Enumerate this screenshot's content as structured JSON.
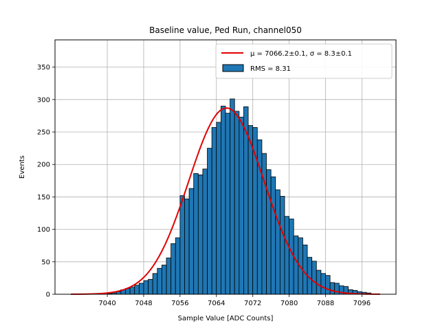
{
  "chart_data": {
    "type": "bar",
    "title": "Baseline value, Ped Run, channel050",
    "xlabel": "Sample Value [ADC Counts]",
    "ylabel": "Events",
    "xlim": [
      7028.5,
      7103.5
    ],
    "ylim": [
      0,
      392
    ],
    "xticks": [
      7040,
      7048,
      7056,
      7064,
      7072,
      7080,
      7088,
      7096
    ],
    "yticks": [
      0,
      50,
      100,
      150,
      200,
      250,
      300,
      350
    ],
    "grid": true,
    "legend_position": "top-right",
    "histogram": {
      "name": "RMS = 8.31",
      "color": "#1f77b4",
      "edge_color": "#000000",
      "bin_width": 1,
      "bin_starts": [
        7032,
        7033,
        7034,
        7035,
        7036,
        7037,
        7038,
        7039,
        7040,
        7041,
        7042,
        7043,
        7044,
        7045,
        7046,
        7047,
        7048,
        7049,
        7050,
        7051,
        7052,
        7053,
        7054,
        7055,
        7056,
        7057,
        7058,
        7059,
        7060,
        7061,
        7062,
        7063,
        7064,
        7065,
        7066,
        7067,
        7068,
        7069,
        7070,
        7071,
        7072,
        7073,
        7074,
        7075,
        7076,
        7077,
        7078,
        7079,
        7080,
        7081,
        7082,
        7083,
        7084,
        7085,
        7086,
        7087,
        7088,
        7089,
        7090,
        7091,
        7092,
        7093,
        7094,
        7095,
        7096,
        7097,
        7098,
        7099
      ],
      "counts": [
        0,
        0,
        0,
        0,
        0,
        0,
        0,
        0,
        1,
        2,
        4,
        7,
        9,
        11,
        14,
        17,
        21,
        23,
        32,
        40,
        45,
        56,
        78,
        87,
        152,
        147,
        163,
        186,
        184,
        193,
        225,
        257,
        265,
        290,
        279,
        301,
        282,
        273,
        289,
        260,
        257,
        238,
        217,
        192,
        181,
        161,
        151,
        120,
        116,
        90,
        87,
        76,
        57,
        51,
        37,
        32,
        29,
        18,
        17,
        13,
        12,
        7,
        6,
        4,
        3,
        2,
        0,
        0
      ]
    },
    "fit": {
      "name": "μ = 7066.2±0.1, σ = 8.3±0.1",
      "color": "#e00000",
      "mu": 7066.2,
      "sigma": 8.3,
      "amplitude": 287,
      "x_range": [
        7032,
        7100
      ]
    },
    "legend": [
      {
        "kind": "line",
        "label": "μ = 7066.2±0.1, σ = 8.3±0.1"
      },
      {
        "kind": "patch",
        "label": "RMS = 8.31"
      }
    ]
  }
}
